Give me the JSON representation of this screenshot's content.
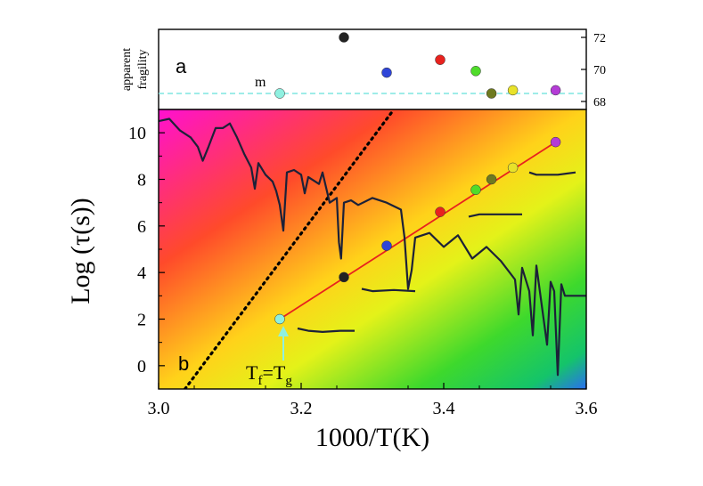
{
  "chart_data": [
    {
      "panel": "a",
      "type": "scatter",
      "panel_label": "a",
      "ylabel": [
        "apparent",
        "fragility"
      ],
      "series_label": "m",
      "reference_line": {
        "y": 68.5,
        "color": "#7fe5e0",
        "style": "dashed"
      },
      "right_ticks": [
        "72",
        "70",
        "68"
      ],
      "ylim": [
        67.5,
        72.5
      ],
      "points": [
        {
          "x": 3.17,
          "m": 68.5,
          "color": "#8ff0e0"
        },
        {
          "x": 3.26,
          "m": 72.0,
          "color": "#222222"
        },
        {
          "x": 3.32,
          "m": 69.8,
          "color": "#2f45d8"
        },
        {
          "x": 3.395,
          "m": 70.6,
          "color": "#e8221e"
        },
        {
          "x": 3.445,
          "m": 69.9,
          "color": "#4fdc2a"
        },
        {
          "x": 3.467,
          "m": 68.5,
          "color": "#6e7a20"
        },
        {
          "x": 3.497,
          "m": 68.7,
          "color": "#e8e22a"
        },
        {
          "x": 3.557,
          "m": 68.7,
          "color": "#b43cd6"
        }
      ]
    },
    {
      "panel": "b",
      "type": "line",
      "panel_label": "b",
      "xlabel": "1000/T(K)",
      "ylabel": "Log (τ(s))",
      "xlim": [
        3.0,
        3.6
      ],
      "ylim": [
        -1.0,
        11.0
      ],
      "xticks": [
        "3.0",
        "3.2",
        "3.4",
        "3.6"
      ],
      "yticks": [
        "0",
        "2",
        "4",
        "6",
        "8",
        "10"
      ],
      "annotation": {
        "text": "T",
        "sub_f": "f",
        "eq": "=T",
        "sub_g": "g",
        "arrow_to": {
          "x": 3.17,
          "y": 2.0
        }
      },
      "series": [
        {
          "name": "fit-line",
          "color": "#e8221e",
          "x": [
            3.17,
            3.557
          ],
          "y": [
            2.0,
            9.6
          ]
        },
        {
          "name": "dotted-boundary",
          "color": "#000000",
          "x": [
            3.037,
            3.33
          ],
          "y": [
            -1.0,
            11.0
          ]
        },
        {
          "name": "points",
          "x": [
            3.17,
            3.26,
            3.32,
            3.395,
            3.445,
            3.467,
            3.497,
            3.557
          ],
          "y": [
            2.0,
            3.8,
            5.15,
            6.6,
            7.55,
            8.0,
            8.5,
            9.6
          ],
          "colors": [
            "#8ff0e0",
            "#222222",
            "#2f45d8",
            "#e8221e",
            "#4fdc2a",
            "#6e7a20",
            "#e8e22a",
            "#b43cd6"
          ]
        },
        {
          "name": "aging-trace",
          "color": "#1c2138",
          "x": [
            3.0,
            3.015,
            3.03,
            3.045,
            3.055,
            3.062,
            3.07,
            3.08,
            3.09,
            3.1,
            3.11,
            3.12,
            3.13,
            3.135,
            3.14,
            3.15,
            3.16,
            3.165,
            3.17,
            3.175,
            3.18,
            3.19,
            3.2,
            3.205,
            3.21,
            3.22,
            3.225,
            3.23,
            3.24,
            3.25,
            3.253,
            3.256,
            3.26,
            3.27,
            3.28,
            3.3,
            3.32,
            3.34,
            3.345,
            3.35,
            3.355,
            3.36,
            3.38,
            3.4,
            3.42,
            3.44,
            3.46,
            3.48,
            3.5,
            3.505,
            3.51,
            3.52,
            3.525,
            3.53,
            3.545,
            3.55,
            3.555,
            3.56,
            3.565,
            3.57,
            3.6
          ],
          "y": [
            10.5,
            10.6,
            10.1,
            9.8,
            9.4,
            8.8,
            9.4,
            10.2,
            10.2,
            10.4,
            9.8,
            9.1,
            8.5,
            7.6,
            8.7,
            8.2,
            7.9,
            7.5,
            6.9,
            5.8,
            8.3,
            8.4,
            8.2,
            7.4,
            8.1,
            7.9,
            7.8,
            8.3,
            7.0,
            7.2,
            5.3,
            4.6,
            7.0,
            7.1,
            6.9,
            7.2,
            7.0,
            6.7,
            5.5,
            3.3,
            4.1,
            5.5,
            5.7,
            5.1,
            5.6,
            4.6,
            5.1,
            4.5,
            3.7,
            2.2,
            4.2,
            3.2,
            1.3,
            4.3,
            0.9,
            3.6,
            3.2,
            -0.4,
            3.5,
            3.0,
            3.0
          ]
        },
        {
          "name": "inset-wiggle-1",
          "color": "#1c2138",
          "x": [
            3.195,
            3.21,
            3.23,
            3.255,
            3.275
          ],
          "y": [
            1.6,
            1.5,
            1.45,
            1.5,
            1.5
          ]
        },
        {
          "name": "inset-wiggle-2",
          "color": "#1c2138",
          "x": [
            3.285,
            3.3,
            3.33,
            3.36
          ],
          "y": [
            3.3,
            3.2,
            3.25,
            3.2
          ]
        },
        {
          "name": "inset-wiggle-3",
          "color": "#1c2138",
          "x": [
            3.435,
            3.45,
            3.48,
            3.51
          ],
          "y": [
            6.4,
            6.5,
            6.5,
            6.5
          ]
        },
        {
          "name": "inset-wiggle-4",
          "color": "#1c2138",
          "x": [
            3.52,
            3.53,
            3.56,
            3.585
          ],
          "y": [
            8.3,
            8.2,
            8.2,
            8.3
          ]
        }
      ]
    }
  ]
}
